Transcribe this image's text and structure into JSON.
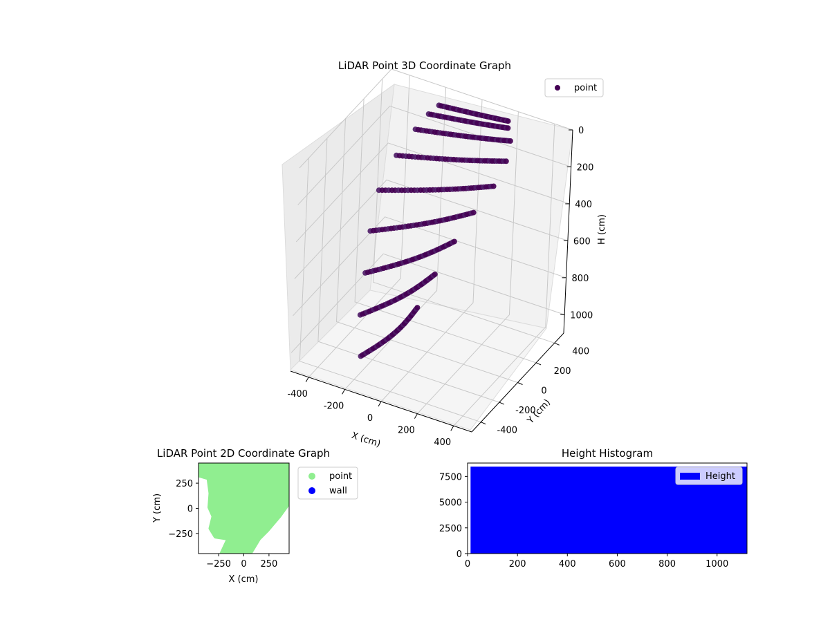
{
  "chart_data": [
    {
      "type": "scatter",
      "title": "LiDAR Point 3D Coordinate Graph",
      "xlabel": "X (cm)",
      "ylabel": "Y (cm)",
      "zlabel": "H (cm)",
      "xlim": [
        -500,
        500
      ],
      "ylim": [
        -500,
        500
      ],
      "zlim": [
        1100,
        0
      ],
      "z_axis_inverted": true,
      "x_ticks": [
        "-400",
        "-200",
        "0",
        "200",
        "400"
      ],
      "y_ticks": [
        "-400",
        "-200",
        "0",
        "200",
        "400"
      ],
      "z_ticks": [
        "0",
        "200",
        "400",
        "600",
        "800",
        "1000"
      ],
      "legend": [
        "point"
      ],
      "legend_position": "upper right",
      "grid": true,
      "colors": {
        "point": "#440154",
        "point_light": "#4f1d68"
      },
      "series": [
        {
          "name": "point",
          "description": "beam arcs of LiDAR points",
          "arcs": [
            {
              "x": [
                -200,
                180
              ],
              "y": [
                430,
                430
              ],
              "h": [
                60,
                20
              ]
            },
            {
              "x": [
                -230,
                200
              ],
              "y": [
                380,
                390
              ],
              "h": [
                90,
                30
              ]
            },
            {
              "x": [
                -260,
                240
              ],
              "y": [
                300,
                340
              ],
              "h": [
                140,
                60
              ]
            },
            {
              "x": [
                -300,
                260
              ],
              "y": [
                180,
                260
              ],
              "h": [
                230,
                120
              ]
            },
            {
              "x": [
                -320,
                250
              ],
              "y": [
                40,
                150
              ],
              "h": [
                350,
                200
              ]
            },
            {
              "x": [
                -300,
                200
              ],
              "y": [
                -80,
                40
              ],
              "h": [
                500,
                300
              ]
            },
            {
              "x": [
                -260,
                150
              ],
              "y": [
                -200,
                -60
              ],
              "h": [
                650,
                420
              ]
            },
            {
              "x": [
                -220,
                100
              ],
              "y": [
                -320,
                -160
              ],
              "h": [
                800,
                560
              ]
            },
            {
              "x": [
                -160,
                60
              ],
              "y": [
                -420,
                -260
              ],
              "h": [
                950,
                700
              ]
            }
          ]
        }
      ]
    },
    {
      "type": "scatter",
      "title": "LiDAR Point 2D Coordinate Graph",
      "xlabel": "X (cm)",
      "ylabel": "Y (cm)",
      "xlim": [
        -450,
        450
      ],
      "ylim": [
        -450,
        450
      ],
      "x_ticks": [
        "−250",
        "0",
        "250"
      ],
      "y_ticks": [
        "250",
        "0",
        "−250"
      ],
      "legend": [
        "point",
        "wall"
      ],
      "legend_position": "outside right",
      "colors": {
        "point": "#90ee90",
        "wall": "#0000ff"
      },
      "series": [
        {
          "name": "point",
          "polygon": [
            [
              -450,
              450
            ],
            [
              450,
              450
            ],
            [
              450,
              60
            ],
            [
              350,
              -80
            ],
            [
              230,
              -220
            ],
            [
              150,
              -300
            ],
            [
              60,
              -450
            ],
            [
              -220,
              -450
            ],
            [
              -150,
              -300
            ],
            [
              -280,
              -280
            ],
            [
              -330,
              -200
            ],
            [
              -300,
              -80
            ],
            [
              -340,
              10
            ],
            [
              -330,
              150
            ],
            [
              -350,
              300
            ],
            [
              -450,
              330
            ]
          ]
        },
        {
          "name": "wall",
          "points": []
        }
      ]
    },
    {
      "type": "bar",
      "title": "Height Histogram",
      "xlim": [
        0,
        1120
      ],
      "ylim": [
        0,
        8800
      ],
      "x_ticks": [
        "0",
        "200",
        "400",
        "600",
        "800",
        "1000"
      ],
      "y_ticks": [
        "0",
        "2500",
        "5000",
        "7500"
      ],
      "legend": [
        "Height"
      ],
      "legend_position": "upper right",
      "colors": {
        "Height": "#0000ff"
      },
      "series": [
        {
          "name": "Height",
          "bin_range": [
            12,
            1120
          ],
          "value": 8450
        }
      ]
    }
  ]
}
